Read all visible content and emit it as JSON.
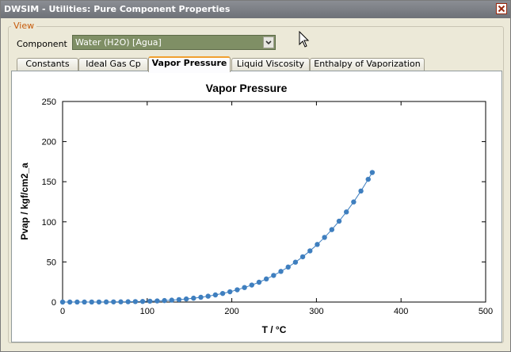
{
  "window": {
    "title": "DWSIM - Utilities: Pure Component Properties",
    "close_icon": "close-icon"
  },
  "view_group": {
    "caption": "View"
  },
  "component": {
    "label": "Component",
    "value": "Water (H2O) [Agua]",
    "dropdown_icon": "chevron-down-icon"
  },
  "tabs": [
    {
      "label": "Constants"
    },
    {
      "label": "Ideal Gas Cp"
    },
    {
      "label": "Vapor Pressure"
    },
    {
      "label": "Liquid Viscosity"
    },
    {
      "label": "Enthalpy of Vaporization"
    }
  ],
  "active_tab": "Vapor Pressure",
  "chart_data": {
    "type": "line",
    "title": "Vapor Pressure",
    "xlabel": "T / °C",
    "ylabel": "Pvap / kgf/cm2_a",
    "xlim": [
      0,
      500
    ],
    "ylim": [
      0,
      250
    ],
    "xticks": [
      0,
      100,
      200,
      300,
      400,
      500
    ],
    "yticks": [
      0,
      50,
      100,
      150,
      200,
      250
    ],
    "grid": false,
    "series": [
      {
        "color": "#3f7fbf",
        "marker": "circle",
        "x": [
          0.01,
          8.6,
          17.2,
          25.8,
          34.4,
          43.0,
          51.6,
          60.2,
          68.8,
          77.4,
          86.0,
          94.6,
          103.2,
          111.8,
          120.4,
          129.0,
          137.6,
          146.2,
          154.8,
          163.4,
          172.0,
          180.6,
          189.2,
          197.8,
          206.4,
          215.0,
          223.6,
          232.2,
          240.8,
          249.4,
          258.0,
          266.6,
          275.2,
          283.8,
          292.4,
          301.0,
          309.6,
          318.2,
          326.8,
          335.4,
          344.0,
          352.6,
          361.2,
          366.0
        ],
        "y": [
          0.006,
          0.011,
          0.02,
          0.034,
          0.055,
          0.088,
          0.134,
          0.2,
          0.29,
          0.41,
          0.57,
          0.79,
          1.07,
          1.41,
          1.85,
          2.38,
          3.06,
          3.86,
          4.82,
          5.96,
          7.32,
          8.9,
          10.7,
          12.8,
          15.3,
          18.1,
          21.2,
          24.7,
          28.8,
          33.2,
          38.2,
          43.6,
          49.7,
          56.4,
          63.8,
          71.8,
          80.6,
          90.3,
          100.8,
          112.3,
          124.8,
          138.4,
          153.0,
          161.5
        ]
      }
    ]
  }
}
